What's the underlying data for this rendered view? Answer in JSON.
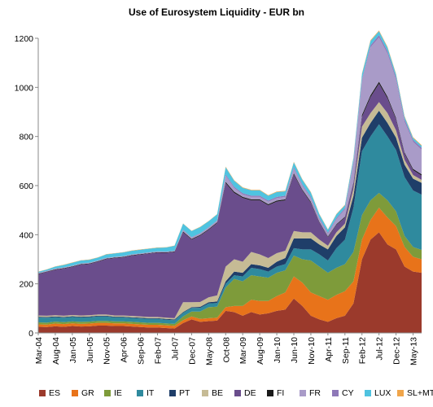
{
  "chart_data": {
    "type": "area",
    "stacked": true,
    "title": "Use of Eurosystem Liquidity - EUR bn",
    "xlabel": "",
    "ylabel": "",
    "ylim": [
      0,
      1200
    ],
    "yticks": [
      0,
      200,
      400,
      600,
      800,
      1000,
      1200
    ],
    "grid": false,
    "legend_position": "bottom",
    "x_tick_labels": [
      "Mar-04",
      "Aug-04",
      "Jan-05",
      "Jun-05",
      "Nov-05",
      "Apr-06",
      "Sep-06",
      "Feb-07",
      "Jul-07",
      "Dec-07",
      "May-08",
      "Oct-08",
      "Mar-09",
      "Aug-09",
      "Jan-10",
      "Jun-10",
      "Nov-10",
      "Apr-11",
      "Sep-11",
      "Feb-12",
      "Jul-12",
      "Dec-12",
      "May-13"
    ],
    "x": [
      "Mar-04",
      "May-04",
      "Aug-04",
      "Nov-04",
      "Jan-05",
      "Apr-05",
      "Jun-05",
      "Sep-05",
      "Nov-05",
      "Feb-06",
      "Apr-06",
      "Jul-06",
      "Sep-06",
      "Dec-06",
      "Feb-07",
      "May-07",
      "Jul-07",
      "Oct-07",
      "Dec-07",
      "Mar-08",
      "May-08",
      "Aug-08",
      "Oct-08",
      "Jan-09",
      "Mar-09",
      "Jun-09",
      "Aug-09",
      "Nov-09",
      "Jan-10",
      "Apr-10",
      "Jun-10",
      "Sep-10",
      "Nov-10",
      "Feb-11",
      "Apr-11",
      "Jul-11",
      "Sep-11",
      "Dec-11",
      "Feb-12",
      "May-12",
      "Jul-12",
      "Oct-12",
      "Dec-12",
      "Mar-13",
      "May-13",
      "Jul-13"
    ],
    "series": [
      {
        "name": "ES",
        "color": "#9b3a2c",
        "values": [
          25,
          24,
          27,
          25,
          28,
          26,
          27,
          30,
          30,
          28,
          28,
          26,
          24,
          22,
          22,
          20,
          18,
          40,
          55,
          45,
          48,
          50,
          90,
          85,
          70,
          85,
          75,
          80,
          90,
          95,
          140,
          110,
          70,
          55,
          45,
          60,
          70,
          120,
          300,
          380,
          410,
          360,
          340,
          270,
          250,
          245
        ]
      },
      {
        "name": "GR",
        "color": "#e8731a",
        "values": [
          10,
          10,
          11,
          11,
          11,
          11,
          11,
          11,
          11,
          11,
          11,
          11,
          11,
          11,
          11,
          11,
          11,
          12,
          12,
          12,
          12,
          12,
          15,
          25,
          40,
          50,
          55,
          50,
          60,
          70,
          90,
          95,
          95,
          95,
          90,
          95,
          100,
          90,
          80,
          80,
          100,
          110,
          95,
          80,
          60,
          55
        ]
      },
      {
        "name": "IE",
        "color": "#7e9b3a",
        "values": [
          8,
          8,
          8,
          8,
          8,
          8,
          8,
          8,
          8,
          8,
          8,
          8,
          8,
          8,
          8,
          8,
          8,
          15,
          20,
          30,
          45,
          45,
          80,
          110,
          100,
          100,
          100,
          95,
          95,
          90,
          85,
          95,
          130,
          120,
          110,
          110,
          110,
          120,
          100,
          80,
          60,
          70,
          60,
          45,
          40,
          38
        ]
      },
      {
        "name": "IT",
        "color": "#2f8a9e",
        "values": [
          20,
          20,
          18,
          18,
          18,
          18,
          18,
          18,
          18,
          16,
          16,
          16,
          16,
          16,
          16,
          15,
          15,
          15,
          15,
          15,
          15,
          15,
          15,
          15,
          20,
          30,
          30,
          25,
          25,
          25,
          30,
          40,
          45,
          50,
          50,
          80,
          100,
          180,
          260,
          260,
          280,
          260,
          250,
          240,
          230,
          225
        ]
      },
      {
        "name": "PT",
        "color": "#1f3e69",
        "values": [
          3,
          3,
          3,
          3,
          3,
          3,
          3,
          3,
          3,
          3,
          3,
          3,
          3,
          3,
          3,
          3,
          3,
          3,
          3,
          4,
          5,
          6,
          10,
          15,
          15,
          15,
          15,
          15,
          20,
          25,
          40,
          45,
          45,
          40,
          45,
          50,
          50,
          48,
          55,
          55,
          55,
          55,
          50,
          50,
          48,
          48
        ]
      },
      {
        "name": "BE",
        "color": "#c6bb95",
        "values": [
          5,
          5,
          5,
          5,
          5,
          5,
          5,
          5,
          5,
          5,
          5,
          5,
          5,
          5,
          5,
          5,
          5,
          40,
          20,
          20,
          20,
          25,
          60,
          50,
          45,
          50,
          45,
          40,
          35,
          30,
          30,
          25,
          25,
          20,
          15,
          15,
          15,
          30,
          45,
          40,
          35,
          40,
          30,
          20,
          15,
          12
        ]
      },
      {
        "name": "DE",
        "color": "#6a4d8c",
        "values": [
          168,
          178,
          185,
          192,
          196,
          207,
          209,
          215,
          226,
          234,
          237,
          246,
          252,
          258,
          262,
          264,
          270,
          285,
          255,
          270,
          275,
          295,
          340,
          270,
          260,
          210,
          220,
          215,
          210,
          205,
          230,
          170,
          120,
          70,
          35,
          30,
          25,
          20,
          40,
          65,
          75,
          60,
          45,
          25,
          20,
          18
        ]
      },
      {
        "name": "FI",
        "color": "#1a1a1a",
        "values": [
          2,
          2,
          2,
          2,
          2,
          2,
          2,
          2,
          2,
          2,
          2,
          2,
          2,
          2,
          2,
          2,
          2,
          3,
          3,
          3,
          3,
          3,
          5,
          5,
          4,
          4,
          4,
          4,
          4,
          4,
          5,
          4,
          4,
          3,
          3,
          3,
          3,
          5,
          8,
          8,
          8,
          7,
          6,
          5,
          5,
          5
        ]
      },
      {
        "name": "FR",
        "color": "#a99bc8",
        "values": [
          2,
          2,
          2,
          2,
          2,
          2,
          2,
          2,
          2,
          2,
          2,
          2,
          2,
          2,
          2,
          2,
          2,
          5,
          5,
          5,
          5,
          5,
          25,
          15,
          10,
          10,
          10,
          10,
          10,
          10,
          20,
          15,
          15,
          10,
          10,
          20,
          30,
          80,
          140,
          195,
          180,
          175,
          155,
          125,
          110,
          100
        ]
      },
      {
        "name": "CY",
        "color": "#8e78b8",
        "values": [
          1,
          1,
          1,
          1,
          1,
          1,
          1,
          1,
          1,
          1,
          1,
          1,
          1,
          1,
          1,
          1,
          1,
          2,
          2,
          2,
          2,
          2,
          5,
          5,
          5,
          5,
          5,
          5,
          5,
          5,
          5,
          5,
          5,
          5,
          5,
          5,
          5,
          5,
          6,
          8,
          10,
          10,
          10,
          10,
          8,
          8
        ]
      },
      {
        "name": "LUX",
        "color": "#4fc3e0",
        "values": [
          5,
          5,
          8,
          10,
          12,
          12,
          12,
          12,
          14,
          14,
          15,
          15,
          15,
          15,
          15,
          17,
          20,
          25,
          25,
          25,
          25,
          25,
          30,
          25,
          22,
          22,
          22,
          20,
          20,
          18,
          20,
          20,
          18,
          15,
          12,
          15,
          12,
          15,
          20,
          18,
          16,
          15,
          12,
          10,
          8,
          8
        ]
      },
      {
        "name": "SL+MT",
        "color": "#f0a54a",
        "values": [
          1,
          1,
          1,
          1,
          1,
          1,
          1,
          1,
          1,
          1,
          1,
          1,
          1,
          1,
          1,
          1,
          1,
          1,
          1,
          1,
          1,
          1,
          2,
          2,
          2,
          2,
          2,
          2,
          2,
          2,
          2,
          2,
          2,
          2,
          2,
          2,
          2,
          2,
          3,
          3,
          3,
          3,
          3,
          3,
          3,
          3
        ]
      }
    ]
  }
}
